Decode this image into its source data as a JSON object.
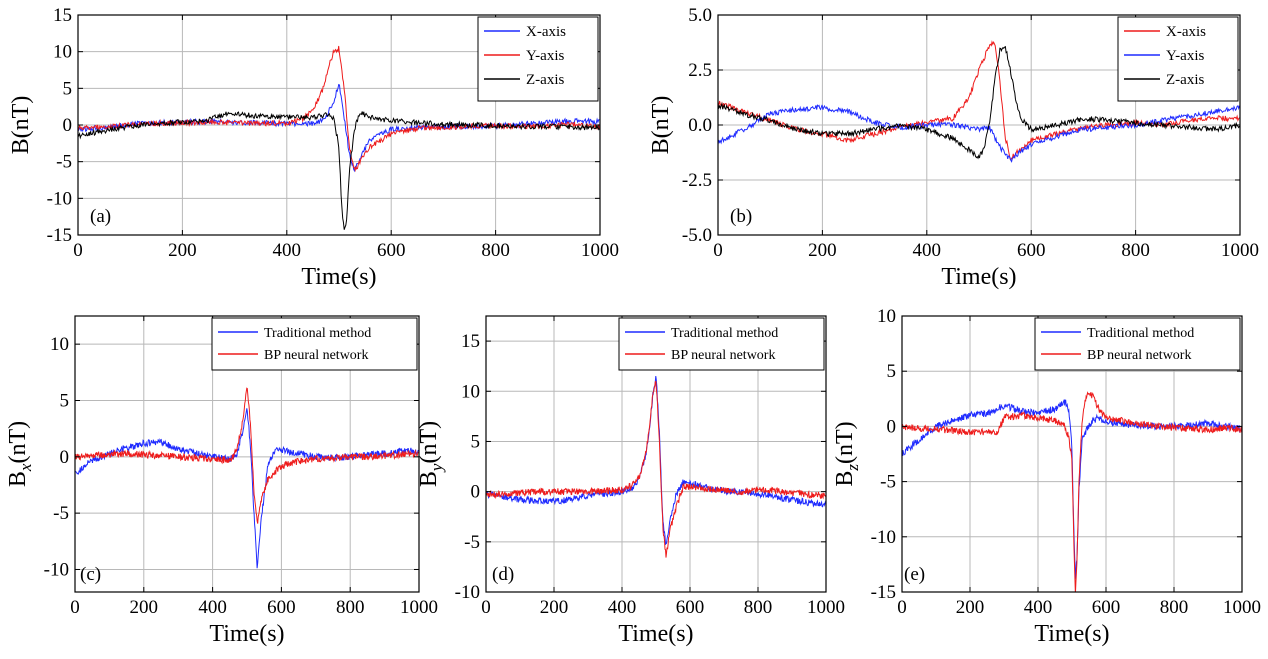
{
  "figure": {
    "panels": [
      "(a)",
      "(b)",
      "(c)",
      "(d)",
      "(e)"
    ]
  },
  "colors": {
    "blue": "#1f2bff",
    "red": "#ee1c1c",
    "black": "#000000",
    "grid": "#b8b8b8"
  },
  "chart_data": [
    {
      "id": "a",
      "type": "line",
      "panel_label": "(a)",
      "xlabel": "Time(s)",
      "ylabel": "B(nT)",
      "xlim": [
        0,
        1000
      ],
      "ylim": [
        -15,
        15
      ],
      "xticks": [
        0,
        200,
        400,
        600,
        800,
        1000
      ],
      "yticks": [
        -15,
        -10,
        -5,
        0,
        5,
        10,
        15
      ],
      "ytick_labels": [
        "-15",
        "-10",
        "-5",
        "0",
        "5",
        "10",
        "15"
      ],
      "grid": true,
      "legend_position": "top-right",
      "series": [
        {
          "name": "X-axis",
          "color": "#1f2bff",
          "x": [
            0,
            50,
            100,
            150,
            200,
            250,
            300,
            350,
            400,
            450,
            470,
            490,
            500,
            510,
            520,
            530,
            540,
            560,
            600,
            650,
            700,
            750,
            800,
            850,
            900,
            950,
            1000
          ],
          "y": [
            -0.6,
            -0.3,
            0.1,
            0.3,
            0.4,
            0.5,
            0.4,
            0.3,
            0.2,
            0.2,
            0.6,
            3.0,
            5.8,
            1.0,
            -4.0,
            -6.2,
            -4.5,
            -2.0,
            -0.6,
            -0.3,
            -0.2,
            -0.2,
            -0.1,
            0.1,
            0.3,
            0.6,
            0.4
          ]
        },
        {
          "name": "Y-axis",
          "color": "#ee1c1c",
          "x": [
            0,
            50,
            100,
            150,
            200,
            250,
            300,
            350,
            400,
            430,
            450,
            470,
            480,
            490,
            500,
            510,
            520,
            530,
            540,
            560,
            600,
            650,
            700,
            750,
            800,
            850,
            900,
            950,
            1000
          ],
          "y": [
            -0.4,
            -0.3,
            0,
            0.2,
            0.3,
            0.4,
            0.3,
            0.2,
            0.3,
            0.8,
            2.0,
            5.0,
            7.8,
            10.0,
            10.5,
            5.0,
            -3.0,
            -6.3,
            -5.0,
            -3.0,
            -1.2,
            -0.5,
            -0.3,
            -0.2,
            -0.1,
            -0.2,
            -0.1,
            0.1,
            -0.3
          ]
        },
        {
          "name": "Z-axis",
          "color": "#000000",
          "x": [
            0,
            50,
            100,
            150,
            200,
            250,
            280,
            300,
            350,
            400,
            450,
            470,
            480,
            490,
            500,
            505,
            510,
            515,
            520,
            530,
            540,
            560,
            600,
            650,
            700,
            750,
            800,
            850,
            900,
            950,
            1000
          ],
          "y": [
            -1.5,
            -0.8,
            -0.2,
            0.2,
            0.4,
            0.7,
            1.5,
            1.5,
            1.2,
            1.1,
            1.0,
            1.3,
            1.5,
            0.8,
            -3.0,
            -11.0,
            -14.5,
            -13.0,
            -6.0,
            -0.5,
            1.8,
            1.0,
            0.6,
            0.3,
            0.1,
            0.0,
            -0.1,
            -0.2,
            -0.2,
            -0.3,
            -0.4
          ]
        }
      ]
    },
    {
      "id": "b",
      "type": "line",
      "panel_label": "(b)",
      "xlabel": "Time(s)",
      "ylabel": "B(nT)",
      "xlim": [
        0,
        1000
      ],
      "ylim": [
        -5,
        5
      ],
      "xticks": [
        0,
        200,
        400,
        600,
        800,
        1000
      ],
      "yticks": [
        -5,
        -2.5,
        0,
        2.5,
        5
      ],
      "ytick_labels": [
        "-5.0",
        "-2.5",
        "0.0",
        "2.5",
        "5.0"
      ],
      "grid": true,
      "legend_position": "top-right",
      "series": [
        {
          "name": "X-axis",
          "color": "#ee1c1c",
          "x": [
            0,
            50,
            100,
            150,
            200,
            250,
            300,
            350,
            400,
            450,
            480,
            500,
            520,
            530,
            540,
            550,
            560,
            580,
            600,
            650,
            700,
            750,
            800,
            850,
            900,
            950,
            1000
          ],
          "y": [
            1.0,
            0.6,
            0.2,
            -0.2,
            -0.4,
            -0.7,
            -0.4,
            -0.1,
            0.1,
            0.3,
            1.2,
            2.5,
            3.6,
            3.8,
            2.0,
            -0.5,
            -1.5,
            -1.1,
            -0.7,
            -0.4,
            -0.1,
            0.0,
            0.1,
            0.0,
            0.2,
            0.3,
            0.3
          ]
        },
        {
          "name": "Y-axis",
          "color": "#1f2bff",
          "x": [
            0,
            50,
            100,
            150,
            200,
            250,
            300,
            350,
            400,
            450,
            500,
            520,
            540,
            560,
            580,
            600,
            650,
            700,
            750,
            800,
            850,
            900,
            950,
            1000
          ],
          "y": [
            -0.8,
            -0.2,
            0.5,
            0.7,
            0.8,
            0.6,
            0.1,
            -0.1,
            0.0,
            0.0,
            -0.2,
            -0.1,
            -1.0,
            -1.6,
            -1.2,
            -0.9,
            -0.5,
            -0.2,
            -0.1,
            0.0,
            0.2,
            0.4,
            0.6,
            0.8
          ]
        },
        {
          "name": "Z-axis",
          "color": "#000000",
          "x": [
            0,
            50,
            100,
            150,
            200,
            250,
            300,
            350,
            400,
            450,
            480,
            500,
            510,
            520,
            530,
            540,
            550,
            560,
            570,
            580,
            600,
            650,
            700,
            750,
            800,
            850,
            900,
            950,
            1000
          ],
          "y": [
            0.9,
            0.5,
            0.2,
            -0.2,
            -0.4,
            -0.4,
            -0.2,
            0.0,
            -0.2,
            -0.6,
            -1.1,
            -1.5,
            -1.0,
            0.0,
            2.0,
            3.4,
            3.6,
            2.5,
            1.2,
            0.3,
            -0.2,
            0.0,
            0.3,
            0.2,
            0.1,
            0.0,
            -0.1,
            -0.2,
            0.0
          ]
        }
      ]
    },
    {
      "id": "c",
      "type": "line",
      "panel_label": "(c)",
      "xlabel": "Time(s)",
      "ylabel": "B_x(nT)",
      "ylabel_base": "B",
      "ylabel_sub": "x",
      "ylabel_unit": "(nT)",
      "xlim": [
        0,
        1000
      ],
      "ylim": [
        -12,
        12.5
      ],
      "xticks": [
        0,
        200,
        400,
        600,
        800,
        1000
      ],
      "yticks": [
        -10,
        -5,
        0,
        5,
        10
      ],
      "ytick_labels": [
        "-10",
        "-5",
        "0",
        "5",
        "10"
      ],
      "grid": true,
      "legend_position": "top-right",
      "series": [
        {
          "name": "Traditional method",
          "color": "#1f2bff",
          "x": [
            0,
            50,
            100,
            150,
            200,
            250,
            300,
            350,
            400,
            450,
            470,
            490,
            500,
            510,
            520,
            530,
            540,
            560,
            580,
            600,
            650,
            700,
            750,
            800,
            850,
            900,
            950,
            1000
          ],
          "y": [
            -1.5,
            -0.3,
            0.3,
            0.8,
            1.2,
            1.3,
            0.7,
            0.3,
            0.0,
            -0.2,
            0.2,
            2.5,
            4.3,
            1.0,
            -5.0,
            -10.0,
            -6.0,
            -0.8,
            0.5,
            0.6,
            0.3,
            0.0,
            -0.1,
            0.0,
            0.2,
            0.3,
            0.5,
            0.5
          ]
        },
        {
          "name": "BP neural network",
          "color": "#ee1c1c",
          "x": [
            0,
            50,
            100,
            150,
            200,
            250,
            300,
            350,
            400,
            450,
            470,
            490,
            500,
            510,
            520,
            530,
            540,
            560,
            600,
            650,
            700,
            750,
            800,
            850,
            900,
            950,
            1000
          ],
          "y": [
            0.0,
            0.1,
            0.2,
            0.3,
            0.2,
            0.1,
            0.0,
            -0.1,
            -0.2,
            -0.3,
            0.5,
            3.5,
            6.4,
            3.0,
            -3.0,
            -6.0,
            -4.0,
            -2.0,
            -0.8,
            -0.4,
            -0.2,
            -0.1,
            0.0,
            0.0,
            0.1,
            0.2,
            0.3
          ]
        }
      ]
    },
    {
      "id": "d",
      "type": "line",
      "panel_label": "(d)",
      "xlabel": "Time(s)",
      "ylabel": "B_y(nT)",
      "ylabel_base": "B",
      "ylabel_sub": "y",
      "ylabel_unit": "(nT)",
      "xlim": [
        0,
        1000
      ],
      "ylim": [
        -10,
        17.5
      ],
      "xticks": [
        0,
        200,
        400,
        600,
        800,
        1000
      ],
      "yticks": [
        -10,
        -5,
        0,
        5,
        10,
        15
      ],
      "ytick_labels": [
        "-10",
        "-5",
        "0",
        "5",
        "10",
        "15"
      ],
      "grid": true,
      "legend_position": "top-right",
      "series": [
        {
          "name": "Traditional method",
          "color": "#1f2bff",
          "x": [
            0,
            50,
            100,
            150,
            200,
            250,
            300,
            350,
            400,
            430,
            450,
            470,
            480,
            490,
            500,
            510,
            520,
            530,
            540,
            560,
            580,
            600,
            650,
            700,
            750,
            800,
            850,
            900,
            950,
            1000
          ],
          "y": [
            -0.2,
            -0.5,
            -0.8,
            -0.9,
            -1.0,
            -0.7,
            -0.4,
            -0.2,
            0.0,
            0.4,
            1.2,
            3.5,
            6.0,
            9.5,
            11.5,
            6.0,
            -3.0,
            -5.5,
            -3.0,
            -0.2,
            1.0,
            0.8,
            0.4,
            0.1,
            -0.1,
            -0.2,
            -0.5,
            -0.8,
            -1.1,
            -1.3
          ]
        },
        {
          "name": "BP neural network",
          "color": "#ee1c1c",
          "x": [
            0,
            50,
            100,
            150,
            200,
            250,
            300,
            350,
            400,
            430,
            450,
            470,
            480,
            490,
            500,
            510,
            520,
            530,
            540,
            560,
            580,
            600,
            650,
            700,
            750,
            800,
            850,
            900,
            950,
            1000
          ],
          "y": [
            -0.3,
            -0.2,
            -0.1,
            0.0,
            0.0,
            0.0,
            0.0,
            0.1,
            0.2,
            0.6,
            1.4,
            3.8,
            6.2,
            9.6,
            11.0,
            5.0,
            -3.5,
            -6.5,
            -4.0,
            -1.5,
            0.5,
            0.5,
            0.3,
            0.1,
            0.0,
            0.2,
            0.1,
            -0.1,
            -0.3,
            -0.4
          ]
        }
      ]
    },
    {
      "id": "e",
      "type": "line",
      "panel_label": "(e)",
      "xlabel": "Time(s)",
      "ylabel": "B_z(nT)",
      "ylabel_base": "B",
      "ylabel_sub": "z",
      "ylabel_unit": "(nT)",
      "xlim": [
        0,
        1000
      ],
      "ylim": [
        -15,
        10
      ],
      "xticks": [
        0,
        200,
        400,
        600,
        800,
        1000
      ],
      "yticks": [
        -15,
        -10,
        -5,
        0,
        5,
        10
      ],
      "ytick_labels": [
        "-15",
        "-10",
        "-5",
        "0",
        "5",
        "10"
      ],
      "grid": true,
      "legend_position": "top-right",
      "series": [
        {
          "name": "Traditional method",
          "color": "#1f2bff",
          "x": [
            0,
            50,
            100,
            150,
            200,
            250,
            280,
            300,
            350,
            400,
            450,
            470,
            480,
            490,
            500,
            505,
            510,
            515,
            520,
            530,
            540,
            560,
            580,
            600,
            650,
            700,
            750,
            800,
            850,
            900,
            950,
            1000
          ],
          "y": [
            -2.5,
            -1.2,
            0.0,
            0.5,
            1.0,
            1.2,
            1.6,
            1.9,
            1.4,
            1.2,
            1.6,
            2.0,
            2.2,
            1.5,
            -2.0,
            -9.0,
            -13.5,
            -12.0,
            -6.0,
            -1.0,
            -0.5,
            0.5,
            0.8,
            0.4,
            0.2,
            0.1,
            0.0,
            0.0,
            0.1,
            0.3,
            0.0,
            -0.2
          ]
        },
        {
          "name": "BP neural network",
          "color": "#ee1c1c",
          "x": [
            0,
            50,
            100,
            150,
            200,
            250,
            280,
            300,
            350,
            400,
            450,
            470,
            480,
            490,
            500,
            505,
            510,
            515,
            520,
            530,
            540,
            550,
            560,
            580,
            600,
            650,
            700,
            750,
            800,
            850,
            900,
            950,
            1000
          ],
          "y": [
            0.0,
            -0.2,
            -0.2,
            -0.4,
            -0.5,
            -0.5,
            -0.5,
            0.8,
            1.0,
            0.8,
            0.5,
            0.2,
            0.0,
            -1.0,
            -3.0,
            -10.0,
            -15.0,
            -12.0,
            -5.0,
            0.5,
            2.5,
            3.0,
            2.8,
            1.5,
            0.8,
            0.5,
            0.2,
            0.0,
            -0.1,
            -0.2,
            -0.3,
            -0.1,
            -0.3
          ]
        }
      ]
    }
  ]
}
